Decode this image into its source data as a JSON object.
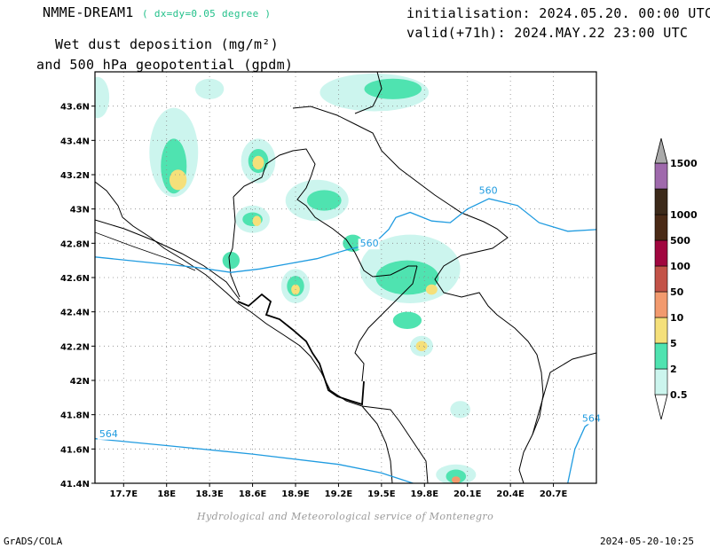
{
  "header": {
    "model": "NMME-DREAM1",
    "resolution": "( dx=dy=0.05 degree )",
    "field_line1": "Wet dust deposition (mg/m²)",
    "field_line2": "and 500 hPa geopotential (gpdm)",
    "init": "initialisation: 2024.05.20. 00:00 UTC",
    "valid": "valid(+71h): 2024.MAY.22 23:00 UTC"
  },
  "footer": {
    "credit": "Hydrological and Meteorological service of Montenegro",
    "software": "GrADS/COLA",
    "timestamp": "2024-05-20-10:25"
  },
  "map": {
    "lon_range": [
      17.5,
      21.0
    ],
    "lat_range": [
      41.4,
      43.8
    ],
    "lon_ticks": [
      17.7,
      18.0,
      18.3,
      18.6,
      18.9,
      19.2,
      19.5,
      19.8,
      20.1,
      20.4,
      20.7
    ],
    "lon_labels": [
      "17.7E",
      "18E",
      "18.3E",
      "18.6E",
      "18.9E",
      "19.2E",
      "19.5E",
      "19.8E",
      "20.1E",
      "20.4E",
      "20.7E"
    ],
    "lat_ticks": [
      41.4,
      41.6,
      41.8,
      42.0,
      42.2,
      42.4,
      42.6,
      42.8,
      43.0,
      43.2,
      43.4,
      43.6
    ],
    "lat_labels": [
      "41.4N",
      "41.6N",
      "41.8N",
      "42N",
      "42.2N",
      "42.4N",
      "42.6N",
      "42.8N",
      "43N",
      "43.2N",
      "43.4N",
      "43.6N"
    ],
    "grid": "dotted",
    "contour_color": "#1f9be0",
    "contours": [
      {
        "label": "560",
        "points": [
          [
            17.5,
            42.72
          ],
          [
            17.85,
            42.69
          ],
          [
            18.2,
            42.66
          ],
          [
            18.45,
            42.63
          ],
          [
            18.65,
            42.65
          ],
          [
            18.85,
            42.68
          ],
          [
            19.05,
            42.71
          ],
          [
            19.25,
            42.76
          ],
          [
            19.45,
            42.8
          ],
          [
            19.55,
            42.88
          ],
          [
            19.6,
            42.95
          ],
          [
            19.7,
            42.98
          ],
          [
            19.85,
            42.93
          ],
          [
            19.98,
            42.92
          ],
          [
            20.1,
            43.0
          ],
          [
            20.25,
            43.06
          ],
          [
            20.45,
            43.02
          ],
          [
            20.6,
            42.92
          ],
          [
            20.8,
            42.87
          ],
          [
            21.0,
            42.88
          ]
        ]
      },
      {
        "label": "564",
        "points": [
          [
            17.5,
            41.66
          ],
          [
            18.0,
            41.62
          ],
          [
            18.6,
            41.57
          ],
          [
            19.2,
            41.51
          ],
          [
            19.5,
            41.46
          ],
          [
            19.72,
            41.4
          ]
        ]
      },
      {
        "label": "564",
        "points": [
          [
            20.8,
            41.4
          ],
          [
            20.85,
            41.6
          ],
          [
            20.92,
            41.73
          ],
          [
            21.0,
            41.78
          ]
        ]
      }
    ],
    "contour_label_positions": [
      [
        19.35,
        42.78
      ],
      [
        20.18,
        43.09
      ],
      [
        17.53,
        41.67
      ],
      [
        20.9,
        41.76
      ]
    ],
    "dust_patches": [
      {
        "lon": 19.45,
        "lat": 43.68,
        "rx": 0.38,
        "ry": 0.11,
        "level": "0.5-2"
      },
      {
        "lon": 19.58,
        "lat": 43.7,
        "rx": 0.2,
        "ry": 0.06,
        "level": "2-5"
      },
      {
        "lon": 18.05,
        "lat": 43.33,
        "rx": 0.17,
        "ry": 0.26,
        "level": "0.5-2"
      },
      {
        "lon": 18.05,
        "lat": 43.25,
        "rx": 0.09,
        "ry": 0.16,
        "level": "2-5"
      },
      {
        "lon": 18.08,
        "lat": 43.17,
        "rx": 0.06,
        "ry": 0.06,
        "level": "5-10"
      },
      {
        "lon": 18.64,
        "lat": 43.28,
        "rx": 0.12,
        "ry": 0.13,
        "level": "0.5-2"
      },
      {
        "lon": 18.64,
        "lat": 43.28,
        "rx": 0.07,
        "ry": 0.07,
        "level": "2-5"
      },
      {
        "lon": 18.64,
        "lat": 43.27,
        "rx": 0.04,
        "ry": 0.04,
        "level": "5-10"
      },
      {
        "lon": 19.05,
        "lat": 43.05,
        "rx": 0.22,
        "ry": 0.12,
        "level": "0.5-2"
      },
      {
        "lon": 19.1,
        "lat": 43.05,
        "rx": 0.12,
        "ry": 0.06,
        "level": "2-5"
      },
      {
        "lon": 18.6,
        "lat": 42.94,
        "rx": 0.12,
        "ry": 0.08,
        "level": "0.5-2"
      },
      {
        "lon": 18.6,
        "lat": 42.94,
        "rx": 0.07,
        "ry": 0.04,
        "level": "2-5"
      },
      {
        "lon": 18.63,
        "lat": 42.93,
        "rx": 0.03,
        "ry": 0.03,
        "level": "5-10"
      },
      {
        "lon": 18.45,
        "lat": 42.7,
        "rx": 0.06,
        "ry": 0.05,
        "level": "2-5"
      },
      {
        "lon": 18.9,
        "lat": 42.55,
        "rx": 0.1,
        "ry": 0.1,
        "level": "0.5-2"
      },
      {
        "lon": 18.9,
        "lat": 42.55,
        "rx": 0.06,
        "ry": 0.06,
        "level": "2-5"
      },
      {
        "lon": 18.9,
        "lat": 42.53,
        "rx": 0.03,
        "ry": 0.03,
        "level": "5-10"
      },
      {
        "lon": 19.7,
        "lat": 42.65,
        "rx": 0.35,
        "ry": 0.2,
        "level": "0.5-2"
      },
      {
        "lon": 19.68,
        "lat": 42.6,
        "rx": 0.22,
        "ry": 0.1,
        "level": "2-5"
      },
      {
        "lon": 19.85,
        "lat": 42.53,
        "rx": 0.04,
        "ry": 0.03,
        "level": "5-10"
      },
      {
        "lon": 19.68,
        "lat": 42.35,
        "rx": 0.1,
        "ry": 0.05,
        "level": "2-5"
      },
      {
        "lon": 19.78,
        "lat": 42.2,
        "rx": 0.08,
        "ry": 0.06,
        "level": "0.5-2"
      },
      {
        "lon": 19.78,
        "lat": 42.2,
        "rx": 0.04,
        "ry": 0.03,
        "level": "5-10"
      },
      {
        "lon": 20.05,
        "lat": 41.83,
        "rx": 0.07,
        "ry": 0.05,
        "level": "0.5-2"
      },
      {
        "lon": 20.02,
        "lat": 41.45,
        "rx": 0.14,
        "ry": 0.06,
        "level": "0.5-2"
      },
      {
        "lon": 20.02,
        "lat": 41.44,
        "rx": 0.07,
        "ry": 0.04,
        "level": "2-5"
      },
      {
        "lon": 20.02,
        "lat": 41.42,
        "rx": 0.03,
        "ry": 0.02,
        "level": "10-50"
      },
      {
        "lon": 17.52,
        "lat": 43.65,
        "rx": 0.08,
        "ry": 0.12,
        "level": "0.5-2"
      },
      {
        "lon": 18.3,
        "lat": 43.7,
        "rx": 0.1,
        "ry": 0.06,
        "level": "0.5-2"
      },
      {
        "lon": 19.3,
        "lat": 42.8,
        "rx": 0.07,
        "ry": 0.05,
        "level": "2-5"
      }
    ],
    "land_color": "#000000"
  },
  "legend": {
    "labels": [
      "0.5",
      "2",
      "5",
      "10",
      "50",
      "100",
      "500",
      "1000",
      "1500"
    ],
    "colors": [
      "#ccf5ee",
      "#4fe3b0",
      "#f5e07a",
      "#f29a6e",
      "#c35348",
      "#a1063f",
      "#4a2a16",
      "#3c2a1a",
      "#9f69ac"
    ],
    "cap_top_color": "#aaaaaa",
    "cap_bottom_color": "#ffffff"
  }
}
